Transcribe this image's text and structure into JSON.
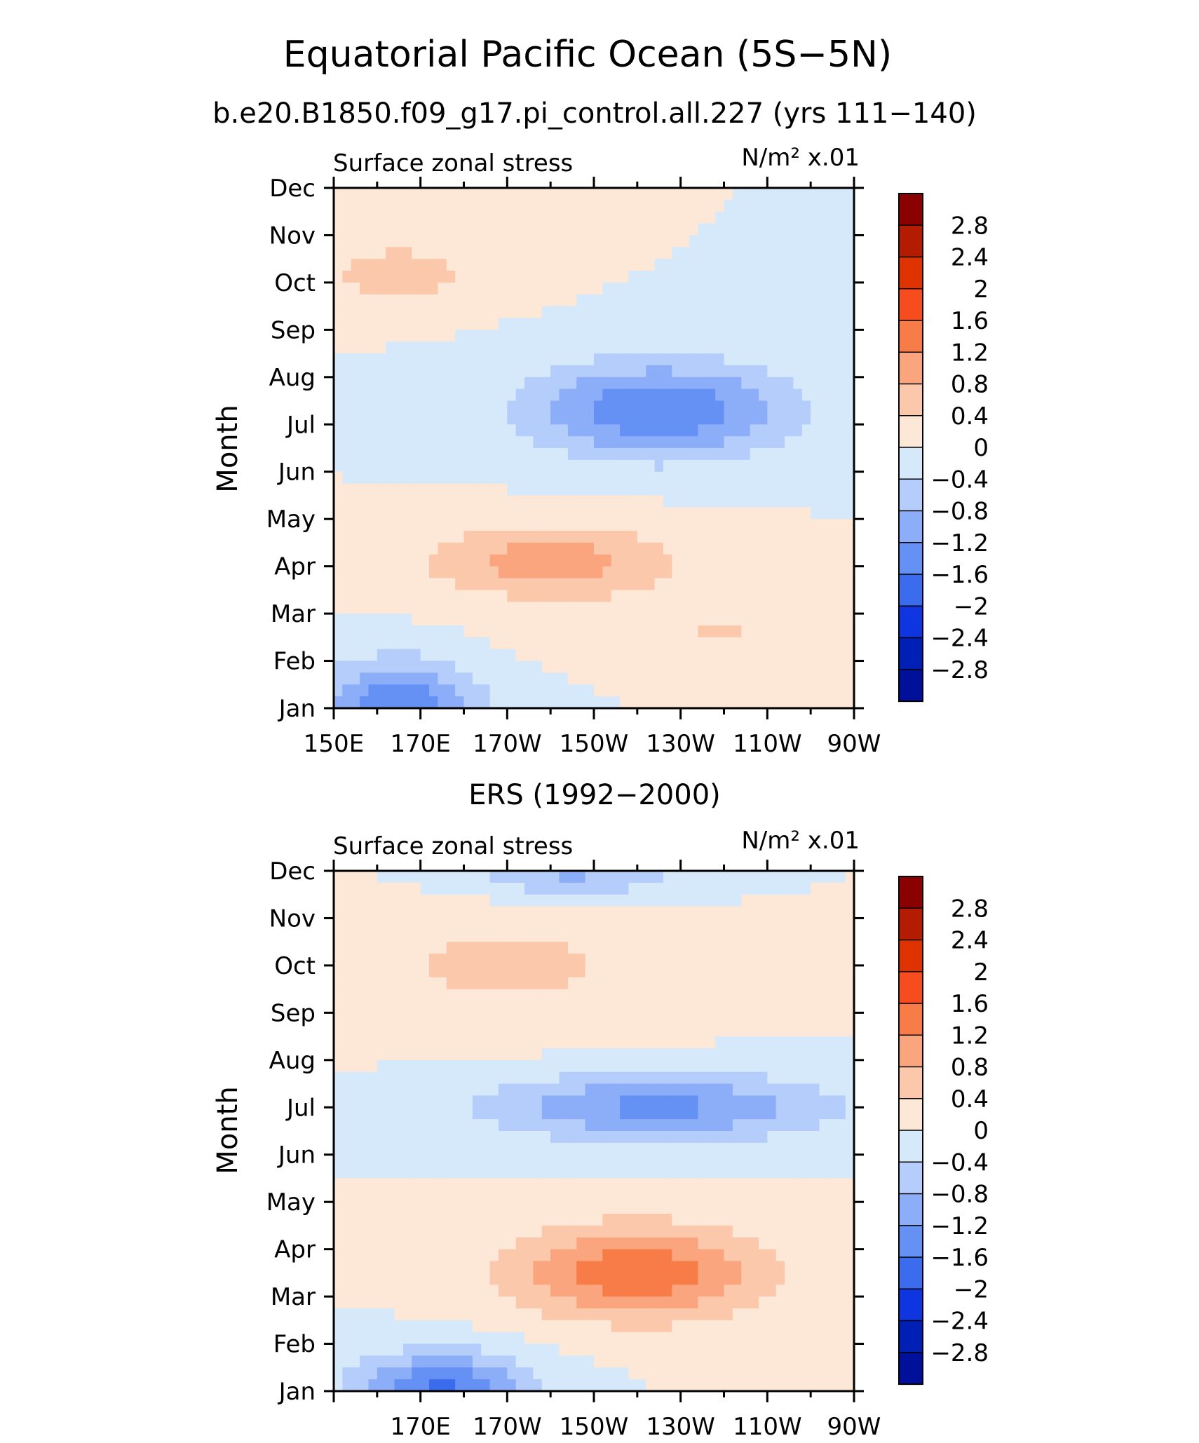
{
  "title": "Equatorial Pacific Ocean (5S−5N)",
  "colorbar_levels": [
    "2.8",
    "2.4",
    "2",
    "1.6",
    "1.2",
    "0.8",
    "0.4",
    "0",
    "−0.4",
    "−0.8",
    "−1.2",
    "−1.6",
    "−2",
    "−2.4",
    "−2.8"
  ],
  "colorbar_colors": [
    "#8b0000",
    "#b31c00",
    "#de3300",
    "#f74d1e",
    "#f77c47",
    "#faa57d",
    "#fbc8ab",
    "#fde7d6",
    "#d6e9fb",
    "#b4cdfa",
    "#8cadf7",
    "#6590f4",
    "#3c6cee",
    "#0e35df",
    "#0020b5",
    "#00109a"
  ],
  "chart_data": [
    {
      "type": "heatmap",
      "subtitle": "b.e20.B1850.f09_g17.pi_control.all.227 (yrs 111−140)",
      "left_label": "Surface zonal stress",
      "units_label": "N/m² x.01",
      "ylabel": "Month",
      "y_ticks": [
        "Jan",
        "Feb",
        "Mar",
        "Apr",
        "May",
        "Jun",
        "Jul",
        "Aug",
        "Sep",
        "Oct",
        "Nov",
        "Dec"
      ],
      "x_ticks": [
        "150E",
        "170E",
        "170W",
        "150W",
        "130W",
        "110W",
        "90W"
      ],
      "x_range": [
        150,
        270
      ],
      "features": [
        {
          "v": 0.4,
          "lon": 240,
          "mon": 2.6,
          "slon": 40,
          "smon": 0.6
        },
        {
          "v": 1.0,
          "lon": 200,
          "mon": 4.1,
          "slon": 30,
          "smon": 0.8
        },
        {
          "v": 0.6,
          "lon": 165,
          "mon": 10.2,
          "slon": 20,
          "smon": 0.7
        },
        {
          "v": -1.6,
          "lon": 165,
          "mon": 1.0,
          "slon": 18,
          "smon": 1.0
        },
        {
          "v": -1.6,
          "lon": 225,
          "mon": 7.3,
          "slon": 30,
          "smon": 1.0
        }
      ]
    },
    {
      "type": "heatmap",
      "subtitle": "ERS (1992−2000)",
      "left_label": "Surface zonal stress",
      "units_label": "N/m² x.01",
      "ylabel": "Month",
      "y_ticks": [
        "Jan",
        "Feb",
        "Mar",
        "Apr",
        "May",
        "Jun",
        "Jul",
        "Aug",
        "Sep",
        "Oct",
        "Nov",
        "Dec"
      ],
      "x_ticks": [
        "170E",
        "170W",
        "150W",
        "130W",
        "110W",
        "90W"
      ],
      "x_range": [
        150,
        270
      ],
      "features": [
        {
          "v": 1.5,
          "lon": 220,
          "mon": 3.5,
          "slon": 30,
          "smon": 1.0
        },
        {
          "v": 0.5,
          "lon": 190,
          "mon": 10.0,
          "slon": 40,
          "smon": 1.3
        },
        {
          "v": -1.7,
          "lon": 175,
          "mon": 1.0,
          "slon": 20,
          "smon": 0.8
        },
        {
          "v": -1.3,
          "lon": 225,
          "mon": 7.0,
          "slon": 40,
          "smon": 0.7
        },
        {
          "v": -0.9,
          "lon": 205,
          "mon": 12.0,
          "slon": 25,
          "smon": 0.6
        }
      ]
    }
  ]
}
